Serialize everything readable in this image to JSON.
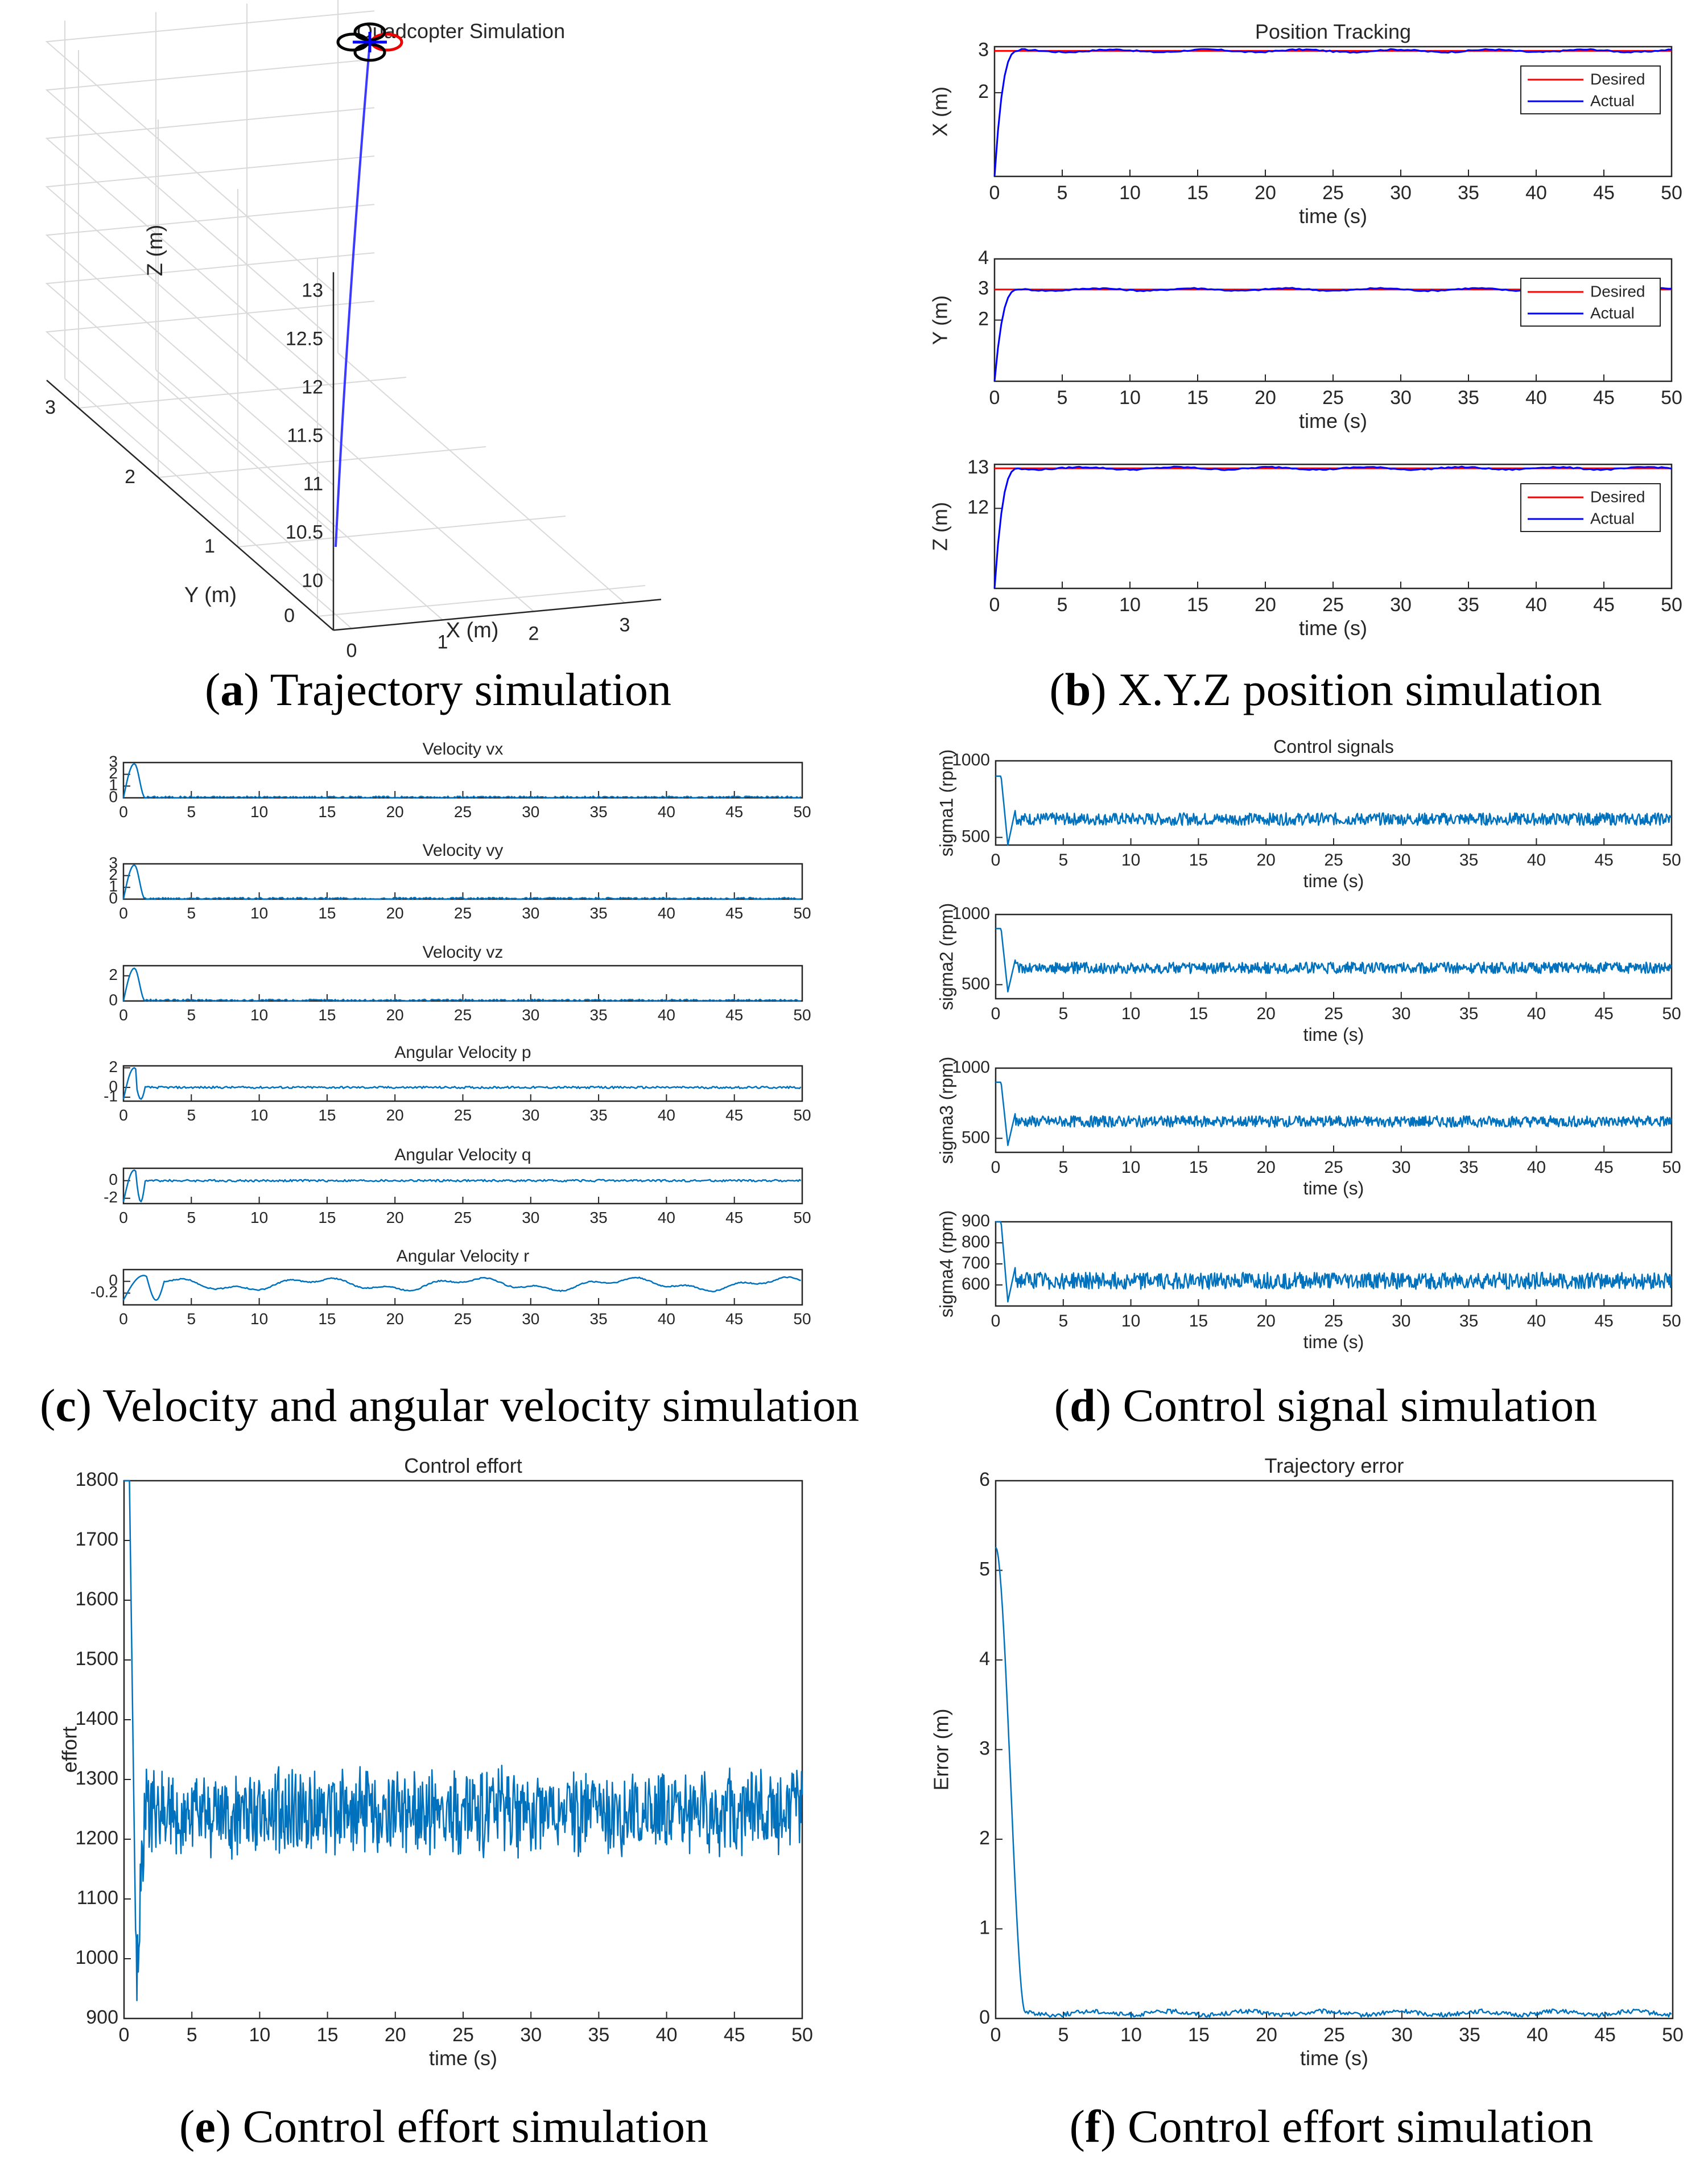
{
  "captions": {
    "a": {
      "letter": "a",
      "text": "Trajectory simulation"
    },
    "b": {
      "letter": "b",
      "text": "X.Y.Z position simulation"
    },
    "c": {
      "letter": "c",
      "text": "Velocity and angular velocity simulation"
    },
    "d": {
      "letter": "d",
      "text": "Control signal simulation"
    },
    "e": {
      "letter": "e",
      "text": "Control effort simulation"
    },
    "f": {
      "letter": "f",
      "text": "Control effort simulation"
    }
  },
  "colors": {
    "actual_blue": "#0000ff",
    "desired_red": "#ff0000",
    "signal_blue": "#0072bd",
    "traj_blue": "#3b3bff",
    "axis": "#262626",
    "grid": "#d9d9d9"
  },
  "chart_data": [
    {
      "id": "a",
      "type": "line3d",
      "title": "Quadcopter Simulation",
      "xlabel": "X (m)",
      "ylabel": "Y (m)",
      "zlabel": "Z (m)",
      "x_ticks": [
        "0",
        "1",
        "2",
        "3"
      ],
      "y_ticks": [
        "0",
        "1",
        "2",
        "3"
      ],
      "z_ticks": [
        "10",
        "10.5",
        "11",
        "11.5",
        "12",
        "12.5",
        "13"
      ],
      "xlim": [
        -0.2,
        3.4
      ],
      "ylim": [
        -0.2,
        3.4
      ],
      "zlim": [
        9.5,
        13.2
      ],
      "series": [
        {
          "name": "trajectory",
          "x": [
            0.0,
            0.3,
            0.8,
            1.4,
            2.0,
            2.6,
            3.0
          ],
          "y": [
            0.0,
            0.3,
            0.8,
            1.4,
            2.0,
            2.6,
            3.0
          ],
          "z": [
            10.2,
            10.9,
            11.5,
            12.0,
            12.4,
            12.8,
            13.0
          ]
        }
      ],
      "quadcopter": {
        "x": 3.0,
        "y": 3.0,
        "z": 13.0
      }
    },
    {
      "id": "b1",
      "type": "line",
      "title": "Position Tracking",
      "xlabel": "time (s)",
      "ylabel": "X (m)",
      "xlim": [
        0,
        50
      ],
      "x_ticks": [
        "0",
        "5",
        "10",
        "15",
        "20",
        "25",
        "30",
        "35",
        "40",
        "45",
        "50"
      ],
      "ylim": [
        0,
        3.1
      ],
      "y_ticks": [
        "2",
        "3"
      ],
      "legend": [
        "Desired",
        "Actual"
      ],
      "legend_pos": "top-right",
      "desired": 3,
      "step": {
        "start": 0.0,
        "final": 3.0,
        "rise": 1.8
      }
    },
    {
      "id": "b2",
      "type": "line",
      "title": "",
      "xlabel": "time (s)",
      "ylabel": "Y (m)",
      "xlim": [
        0,
        50
      ],
      "x_ticks": [
        "0",
        "5",
        "10",
        "15",
        "20",
        "25",
        "30",
        "35",
        "40",
        "45",
        "50"
      ],
      "ylim": [
        0,
        4
      ],
      "y_ticks": [
        "2",
        "3",
        "4"
      ],
      "legend": [
        "Desired",
        "Actual"
      ],
      "legend_pos": "top-right",
      "desired": 3,
      "step": {
        "start": 0.0,
        "final": 3.0,
        "rise": 1.8
      }
    },
    {
      "id": "b3",
      "type": "line",
      "title": "",
      "xlabel": "time (s)",
      "ylabel": "Z (m)",
      "xlim": [
        0,
        50
      ],
      "x_ticks": [
        "0",
        "5",
        "10",
        "15",
        "20",
        "25",
        "30",
        "35",
        "40",
        "45",
        "50"
      ],
      "ylim": [
        10,
        13.1
      ],
      "y_ticks": [
        "12",
        "13"
      ],
      "legend": [
        "Desired",
        "Actual"
      ],
      "legend_pos": "top-right",
      "desired": 13,
      "step": {
        "start": 10.0,
        "final": 13.0,
        "rise": 1.8
      }
    },
    {
      "id": "c1",
      "type": "line",
      "title": "Velocity vx",
      "xlabel": "",
      "xlim": [
        0,
        50
      ],
      "x_ticks": [
        "0",
        "5",
        "10",
        "15",
        "20",
        "25",
        "30",
        "35",
        "40",
        "45",
        "50"
      ],
      "ylim": [
        0,
        3
      ],
      "y_ticks": [
        "0",
        "1",
        "2",
        "3"
      ],
      "transient": {
        "peak": 2.9,
        "trough": 0,
        "end": 1.6
      },
      "steady": 0.05
    },
    {
      "id": "c2",
      "type": "line",
      "title": "Velocity vy",
      "xlabel": "",
      "xlim": [
        0,
        50
      ],
      "x_ticks": [
        "0",
        "5",
        "10",
        "15",
        "20",
        "25",
        "30",
        "35",
        "40",
        "45",
        "50"
      ],
      "ylim": [
        0,
        3
      ],
      "y_ticks": [
        "0",
        "1",
        "2",
        "3"
      ],
      "transient": {
        "peak": 2.9,
        "trough": 0,
        "end": 1.6
      },
      "steady": 0.05
    },
    {
      "id": "c3",
      "type": "line",
      "title": "Velocity vz",
      "xlabel": "",
      "xlim": [
        0,
        50
      ],
      "x_ticks": [
        "0",
        "5",
        "10",
        "15",
        "20",
        "25",
        "30",
        "35",
        "40",
        "45",
        "50"
      ],
      "ylim": [
        0,
        2.8
      ],
      "y_ticks": [
        "0",
        "2"
      ],
      "transient": {
        "peak": 2.6,
        "trough": 0,
        "end": 1.6
      },
      "steady": 0.05
    },
    {
      "id": "c4",
      "type": "line",
      "title": "Angular Velocity p",
      "xlabel": "",
      "xlim": [
        0,
        50
      ],
      "x_ticks": [
        "0",
        "5",
        "10",
        "15",
        "20",
        "25",
        "30",
        "35",
        "40",
        "45",
        "50"
      ],
      "ylim": [
        -1.4,
        2.2
      ],
      "y_ticks": [
        "-1",
        "0",
        "2"
      ],
      "transient": {
        "peak": 2.0,
        "trough": -1.2,
        "end": 1.6
      },
      "steady": 0.0
    },
    {
      "id": "c5",
      "type": "line",
      "title": "Angular Velocity q",
      "xlabel": "",
      "xlim": [
        0,
        50
      ],
      "x_ticks": [
        "0",
        "5",
        "10",
        "15",
        "20",
        "25",
        "30",
        "35",
        "40",
        "45",
        "50"
      ],
      "ylim": [
        -2.6,
        1.4
      ],
      "y_ticks": [
        "-2",
        "0"
      ],
      "transient": {
        "peak": 1.2,
        "trough": -2.4,
        "end": 1.6
      },
      "steady": 0.0
    },
    {
      "id": "c6",
      "type": "line",
      "title": "Angular Velocity r",
      "xlabel": "",
      "xlim": [
        0,
        50
      ],
      "x_ticks": [
        "0",
        "5",
        "10",
        "15",
        "20",
        "25",
        "30",
        "35",
        "40",
        "45",
        "50"
      ],
      "ylim": [
        -0.4,
        0.2
      ],
      "y_ticks": [
        "-0.2",
        "0"
      ],
      "transient": {
        "peak": 0.1,
        "trough": -0.32,
        "end": 3.0
      },
      "steady": -0.05
    },
    {
      "id": "d1",
      "type": "line",
      "title": "Control signals",
      "xlabel": "time (s)",
      "ylabel": "sigma1 (rpm)",
      "xlim": [
        0,
        50
      ],
      "x_ticks": [
        "0",
        "5",
        "10",
        "15",
        "20",
        "25",
        "30",
        "35",
        "40",
        "45",
        "50"
      ],
      "ylim": [
        450,
        1000
      ],
      "y_ticks": [
        "500",
        "1000"
      ],
      "transient": {
        "start": 900,
        "dip": 450,
        "end": 1.5
      },
      "steady": 620,
      "noise": 40
    },
    {
      "id": "d2",
      "type": "line",
      "title": "",
      "xlabel": "time (s)",
      "ylabel": "sigma2 (rpm)",
      "xlim": [
        0,
        50
      ],
      "x_ticks": [
        "0",
        "5",
        "10",
        "15",
        "20",
        "25",
        "30",
        "35",
        "40",
        "45",
        "50"
      ],
      "ylim": [
        400,
        1000
      ],
      "y_ticks": [
        "500",
        "1000"
      ],
      "transient": {
        "start": 900,
        "dip": 450,
        "end": 1.5
      },
      "steady": 620,
      "noise": 40
    },
    {
      "id": "d3",
      "type": "line",
      "title": "",
      "xlabel": "time (s)",
      "ylabel": "sigma3 (rpm)",
      "xlim": [
        0,
        50
      ],
      "x_ticks": [
        "0",
        "5",
        "10",
        "15",
        "20",
        "25",
        "30",
        "35",
        "40",
        "45",
        "50"
      ],
      "ylim": [
        400,
        1000
      ],
      "y_ticks": [
        "500",
        "1000"
      ],
      "transient": {
        "start": 900,
        "dip": 450,
        "end": 1.5
      },
      "steady": 620,
      "noise": 40
    },
    {
      "id": "d4",
      "type": "line",
      "title": "",
      "xlabel": "time (s)",
      "ylabel": "sigma4 (rpm)",
      "xlim": [
        0,
        50
      ],
      "x_ticks": [
        "0",
        "5",
        "10",
        "15",
        "20",
        "25",
        "30",
        "35",
        "40",
        "45",
        "50"
      ],
      "ylim": [
        500,
        900
      ],
      "y_ticks": [
        "600",
        "700",
        "800",
        "900"
      ],
      "transient": {
        "start": 900,
        "dip": 520,
        "end": 1.5
      },
      "steady": 620,
      "noise": 40
    },
    {
      "id": "e",
      "type": "line",
      "title": "Control effort",
      "xlabel": "time (s)",
      "ylabel": "effort",
      "xlim": [
        0,
        50
      ],
      "x_ticks": [
        "0",
        "5",
        "10",
        "15",
        "20",
        "25",
        "30",
        "35",
        "40",
        "45",
        "50"
      ],
      "ylim": [
        900,
        1800
      ],
      "y_ticks": [
        "900",
        "1000",
        "1100",
        "1200",
        "1300",
        "1400",
        "1500",
        "1600",
        "1700",
        "1800"
      ],
      "transient": {
        "start": 1800,
        "dip": 965,
        "end": 1.5
      },
      "steady": 1245,
      "noise": 60
    },
    {
      "id": "f",
      "type": "line",
      "title": "Trajectory error",
      "xlabel": "time (s)",
      "ylabel": "Error (m)",
      "xlim": [
        0,
        50
      ],
      "x_ticks": [
        "0",
        "5",
        "10",
        "15",
        "20",
        "25",
        "30",
        "35",
        "40",
        "45",
        "50"
      ],
      "ylim": [
        0,
        6
      ],
      "y_ticks": [
        "0",
        "1",
        "2",
        "3",
        "4",
        "5",
        "6"
      ],
      "decay": {
        "start": 5.2,
        "end_time": 2.2
      },
      "steady": 0.06
    }
  ]
}
